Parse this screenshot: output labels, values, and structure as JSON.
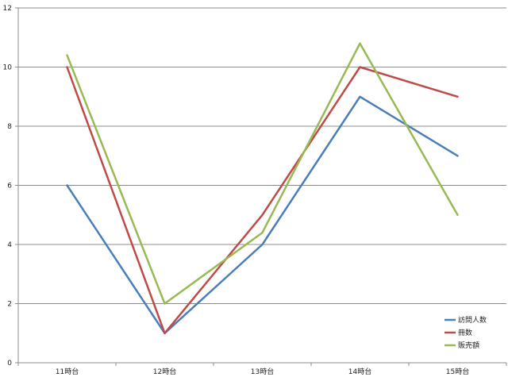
{
  "chart_data": {
    "type": "line",
    "categories": [
      "11時台",
      "12時台",
      "13時台",
      "14時台",
      "15時台"
    ],
    "series": [
      {
        "name": "訪問人数",
        "values": [
          6,
          1,
          4,
          9,
          7
        ],
        "color": "#4a7ebb"
      },
      {
        "name": "冊数",
        "values": [
          10,
          1,
          5,
          10,
          9
        ],
        "color": "#be4b48"
      },
      {
        "name": "販売額",
        "values": [
          10.4,
          2,
          4.4,
          10.8,
          5
        ],
        "color": "#98b954"
      }
    ],
    "ylim": [
      0,
      12
    ],
    "yticks": [
      0,
      2,
      4,
      6,
      8,
      10,
      12
    ],
    "grid": true,
    "legend_position": "bottom-right"
  }
}
